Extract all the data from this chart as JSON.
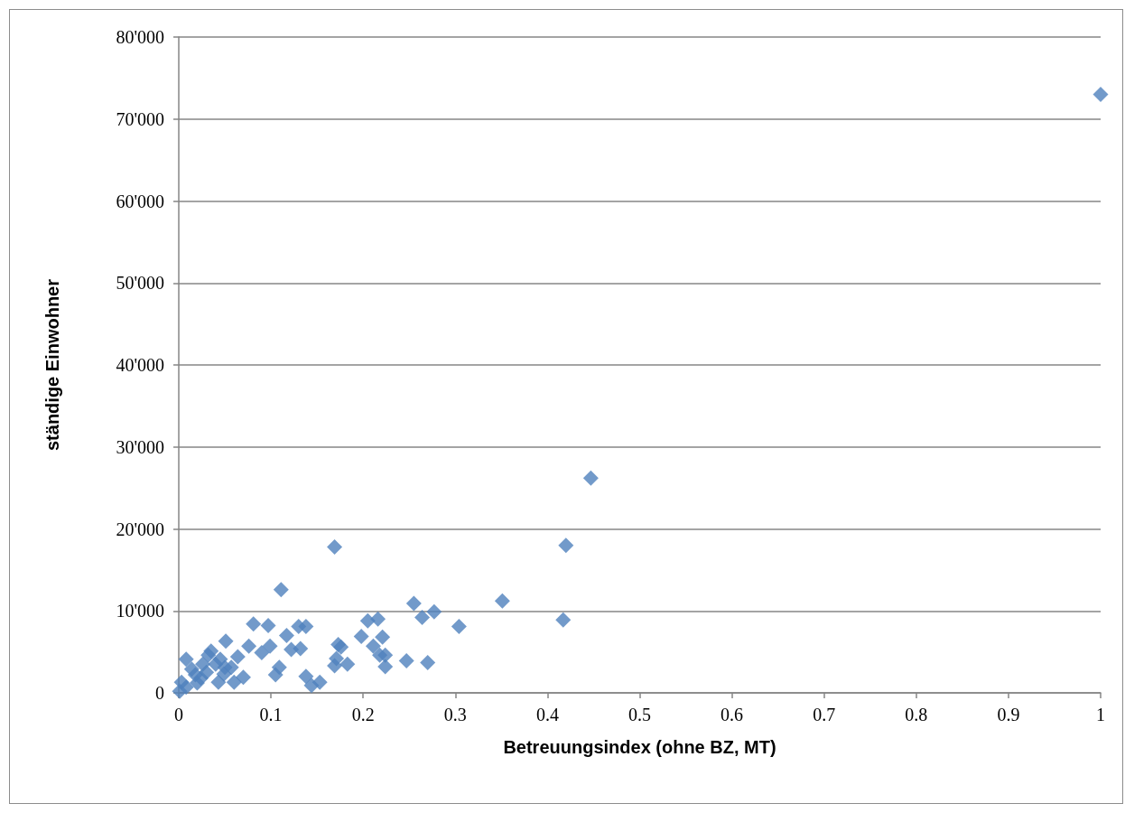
{
  "chart_data": {
    "type": "scatter",
    "xlabel": "Betreuungsindex (ohne BZ, MT)",
    "ylabel": "ständige Einwohner",
    "x": [
      1.0,
      0.447,
      0.42,
      0.417,
      0.351,
      0.304,
      0.277,
      0.264,
      0.255,
      0.27,
      0.247,
      0.169,
      0.111,
      0.216,
      0.205,
      0.211,
      0.198,
      0.221,
      0.224,
      0.218,
      0.224,
      0.183,
      0.176,
      0.173,
      0.171,
      0.169,
      0.138,
      0.13,
      0.132,
      0.122,
      0.117,
      0.138,
      0.144,
      0.153,
      0.109,
      0.105,
      0.099,
      0.097,
      0.09,
      0.081,
      0.076,
      0.051,
      0.064,
      0.07,
      0.06,
      0.057,
      0.05,
      0.045,
      0.035,
      0.04,
      0.03,
      0.024,
      0.018,
      0.008,
      0.014,
      0.003,
      0.008,
      0.001,
      0.02,
      0.043,
      0.049,
      0.032,
      0.026
    ],
    "series": [
      {
        "color": "#4f81bd",
        "values": [
          73000,
          26200,
          18000,
          8900,
          11200,
          8100,
          9900,
          9200,
          10900,
          3700,
          3900,
          17800,
          12600,
          9000,
          8800,
          5700,
          6900,
          6800,
          4600,
          4600,
          3200,
          3500,
          5600,
          5900,
          4200,
          3300,
          8100,
          8100,
          5400,
          5300,
          7000,
          2000,
          900,
          1300,
          3100,
          2200,
          5700,
          8200,
          4900,
          8400,
          5700,
          6300,
          4400,
          1900,
          1300,
          3100,
          3100,
          4100,
          5100,
          3500,
          2500,
          1800,
          2200,
          4100,
          2900,
          1300,
          700,
          200,
          1200,
          1300,
          2300,
          4600,
          3500
        ]
      }
    ],
    "marker": "diamond",
    "grid": "y",
    "xlim": [
      0,
      1
    ],
    "xticks": [
      0,
      0.1,
      0.2,
      0.3,
      0.4,
      0.5,
      0.6,
      0.7,
      0.8,
      0.9,
      1
    ],
    "ylim": [
      0,
      80000
    ],
    "yticks": [
      0,
      {
        "value": 10000,
        "label": "10'000"
      },
      {
        "value": 20000,
        "label": "20'000"
      },
      {
        "value": 30000,
        "label": "30'000"
      },
      {
        "value": 40000,
        "label": "40'000"
      },
      {
        "value": 50000,
        "label": "50'000"
      },
      {
        "value": 60000,
        "label": "60'000"
      },
      {
        "value": 70000,
        "label": "70'000"
      },
      {
        "value": 80000,
        "label": "80'000"
      }
    ]
  }
}
